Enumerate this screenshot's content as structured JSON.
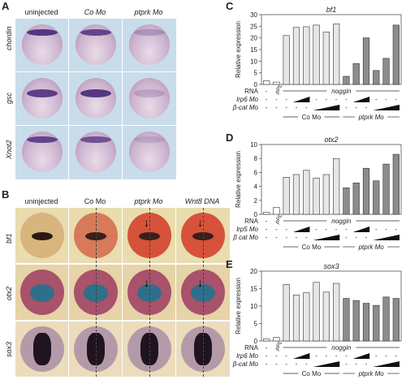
{
  "panelA": {
    "letter": "A",
    "columns": [
      "uninjected",
      "Co Mo",
      "ptprk Mo"
    ],
    "rows": [
      "chordin",
      "gsc",
      "Xnot2"
    ]
  },
  "panelB": {
    "letter": "B",
    "columns": [
      "uninjected",
      "Co Mo",
      "ptprk Mo",
      "Wnt8 DNA"
    ],
    "rows": [
      "bf1",
      "otx2",
      "sox3"
    ]
  },
  "colors": {
    "tile_bg": "#c9dcea",
    "open_bar": "#ffffff",
    "co_bar": "#e6e6e6",
    "ptprk_bar": "#8c8c8c",
    "bar_stroke": "#333333"
  },
  "chart_data": [
    {
      "panel": "C",
      "type": "bar",
      "title": "bf1",
      "ylabel": "Relative expression",
      "ylim": [
        0,
        30
      ],
      "yticks": [
        0,
        5,
        10,
        15,
        20,
        25,
        30
      ],
      "values": [
        1.6,
        1.0,
        21.0,
        24.5,
        24.8,
        25.5,
        22.5,
        26.0,
        3.5,
        9.0,
        20.0,
        6.0,
        11.2,
        25.5
      ],
      "groups": [
        "open",
        "open",
        "light",
        "light",
        "light",
        "light",
        "light",
        "light",
        "dark",
        "dark",
        "dark",
        "dark",
        "dark",
        "dark"
      ],
      "row_labels": {
        "rna": "RNA",
        "ppl": "pPL",
        "noggin": "noggin",
        "mo1": "lrp6 Mo",
        "mo2": "β-cat Mo",
        "co": "Co Mo",
        "ptprk": "ptprk Mo"
      }
    },
    {
      "panel": "D",
      "type": "bar",
      "title": "otx2",
      "ylabel": "Relative expression",
      "ylim": [
        0,
        10
      ],
      "yticks": [
        0,
        2,
        4,
        6,
        8,
        10
      ],
      "values": [
        0.3,
        1.0,
        5.3,
        5.7,
        6.3,
        5.2,
        5.7,
        8.0,
        3.8,
        4.5,
        6.6,
        4.8,
        7.2,
        8.6
      ],
      "groups": [
        "open",
        "open",
        "light",
        "light",
        "light",
        "light",
        "light",
        "light",
        "dark",
        "dark",
        "dark",
        "dark",
        "dark",
        "dark"
      ],
      "row_labels": {
        "rna": "RNA",
        "ppl": "pPL",
        "noggin": "noggin",
        "mo1": "lrp5 Mo",
        "mo2": "β cat Mo",
        "co": "Co Mo",
        "ptprk": "ptprk Mo"
      }
    },
    {
      "panel": "E",
      "type": "bar",
      "title": "sox3",
      "ylabel": "Relative expression",
      "ylim": [
        0,
        20
      ],
      "yticks": [
        0,
        5,
        10,
        15,
        20
      ],
      "values": [
        0.6,
        1.0,
        16.2,
        13.2,
        13.8,
        16.8,
        14.0,
        16.5,
        12.2,
        11.6,
        10.8,
        10.2,
        12.6,
        12.2
      ],
      "groups": [
        "open",
        "open",
        "light",
        "light",
        "light",
        "light",
        "light",
        "light",
        "dark",
        "dark",
        "dark",
        "dark",
        "dark",
        "dark"
      ],
      "row_labels": {
        "rna": "RNA",
        "ppl": "pPL",
        "noggin": "noggin",
        "mo1": "lrp6 Mo",
        "mo2": "β-cat Mo",
        "co": "Co Mo",
        "ptprk": "ptprk Mo"
      }
    }
  ]
}
